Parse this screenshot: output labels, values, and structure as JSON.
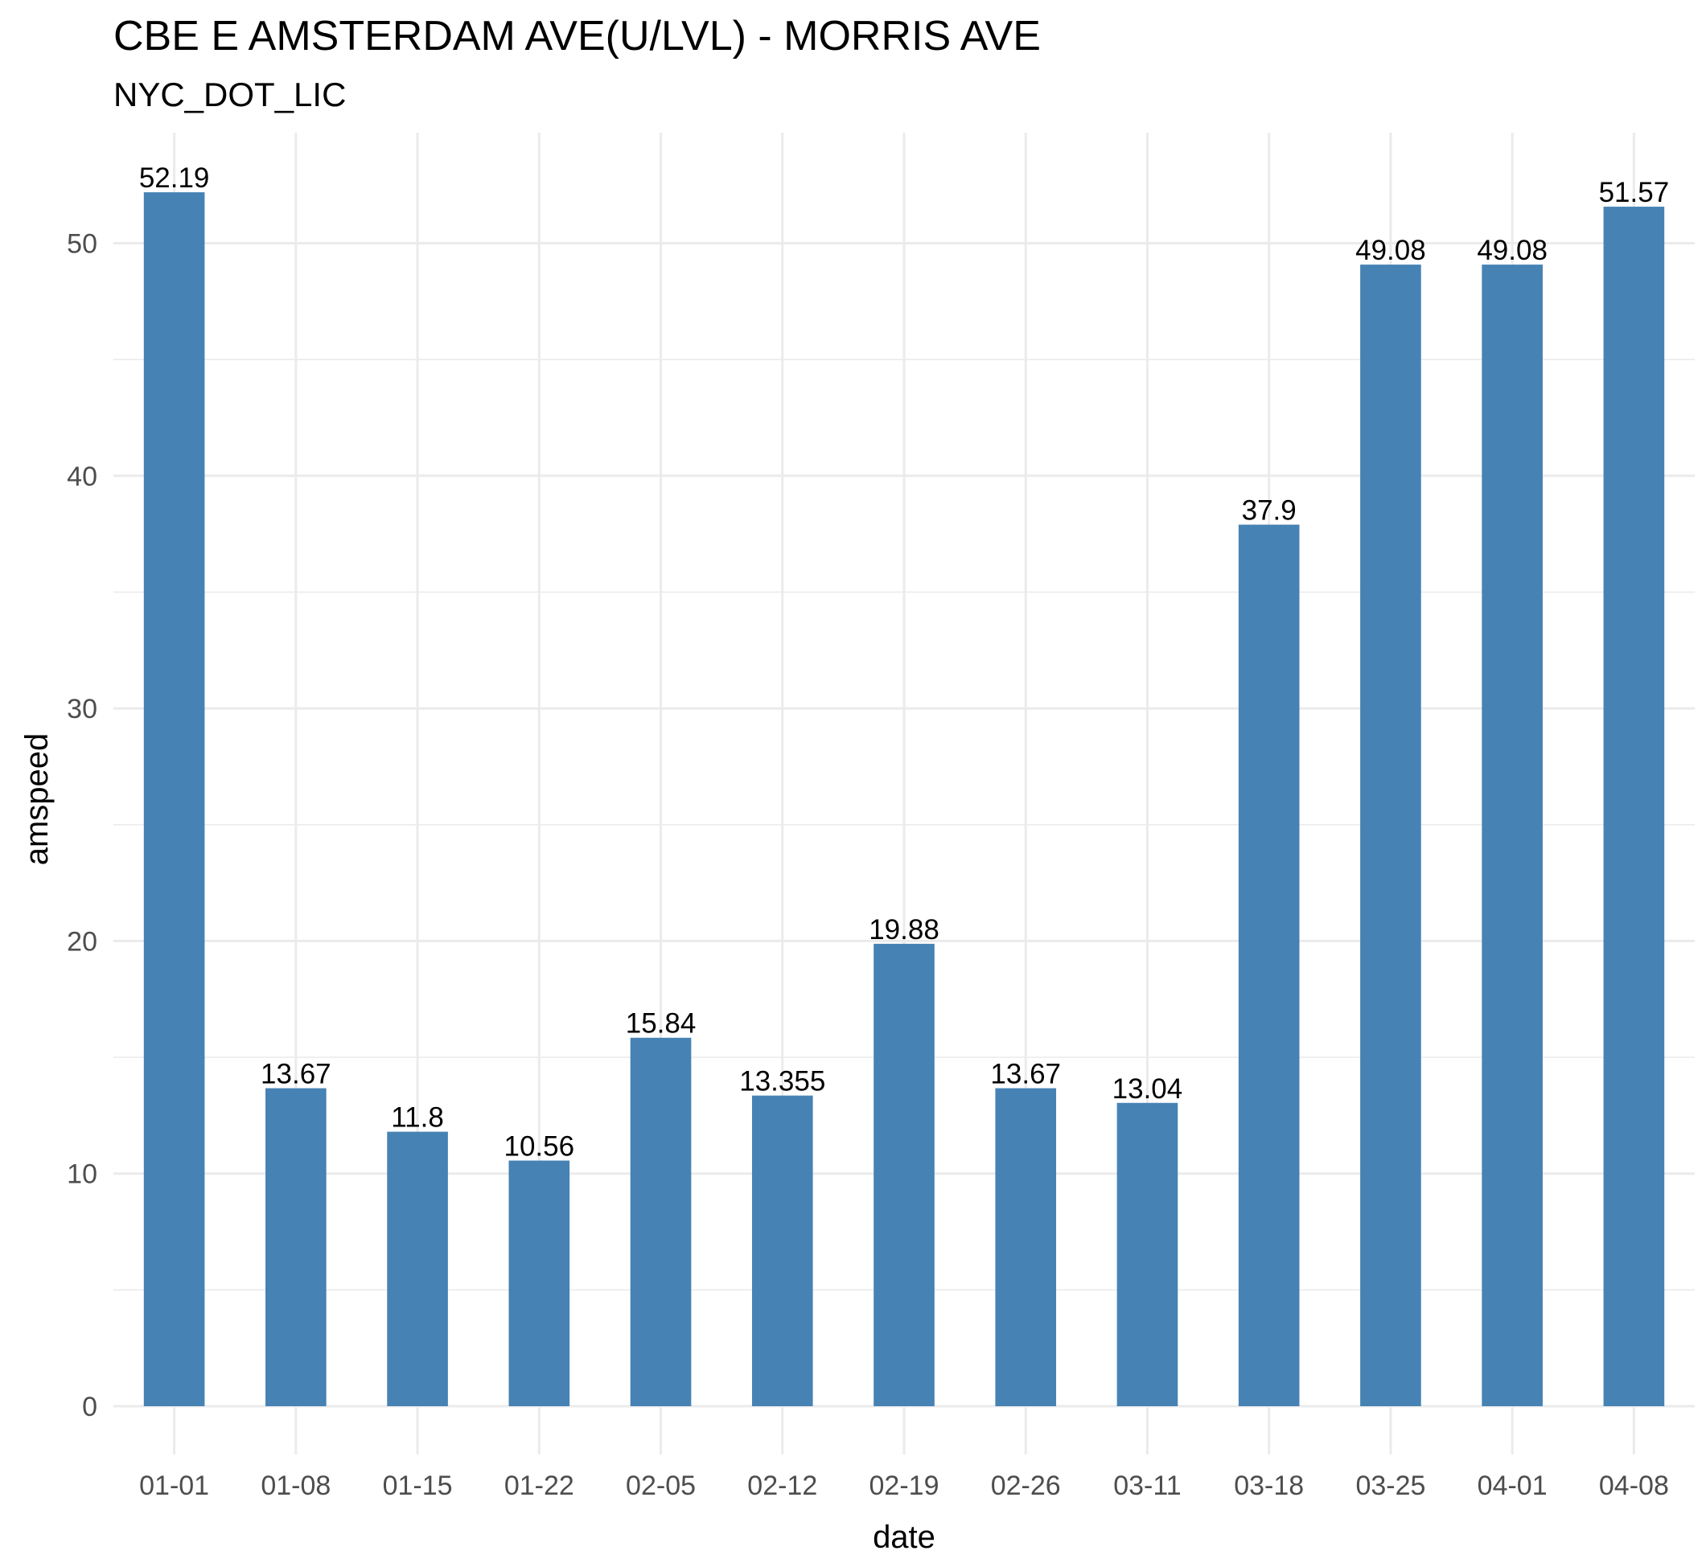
{
  "chart_data": {
    "type": "bar",
    "title": "CBE E AMSTERDAM AVE(U/LVL) - MORRIS AVE",
    "subtitle": "NYC_DOT_LIC",
    "xlabel": "date",
    "ylabel": "amspeed",
    "categories": [
      "01-01",
      "01-08",
      "01-15",
      "01-22",
      "02-05",
      "02-12",
      "02-19",
      "02-26",
      "03-11",
      "03-18",
      "03-25",
      "04-01",
      "04-08"
    ],
    "values": [
      52.19,
      13.67,
      11.8,
      10.56,
      15.84,
      13.355,
      19.88,
      13.67,
      13.04,
      37.9,
      49.08,
      49.08,
      51.57
    ],
    "value_labels": [
      "52.19",
      "13.67",
      "11.8",
      "10.56",
      "15.84",
      "13.355",
      "19.88",
      "13.67",
      "13.04",
      "37.9",
      "49.08",
      "49.08",
      "51.57"
    ],
    "y_ticks": [
      0,
      10,
      20,
      30,
      40,
      50
    ],
    "ylim": [
      0,
      54
    ],
    "grid": true,
    "legend": "none",
    "bar_color": "#4682b4",
    "grid_color": "#ebebeb"
  }
}
